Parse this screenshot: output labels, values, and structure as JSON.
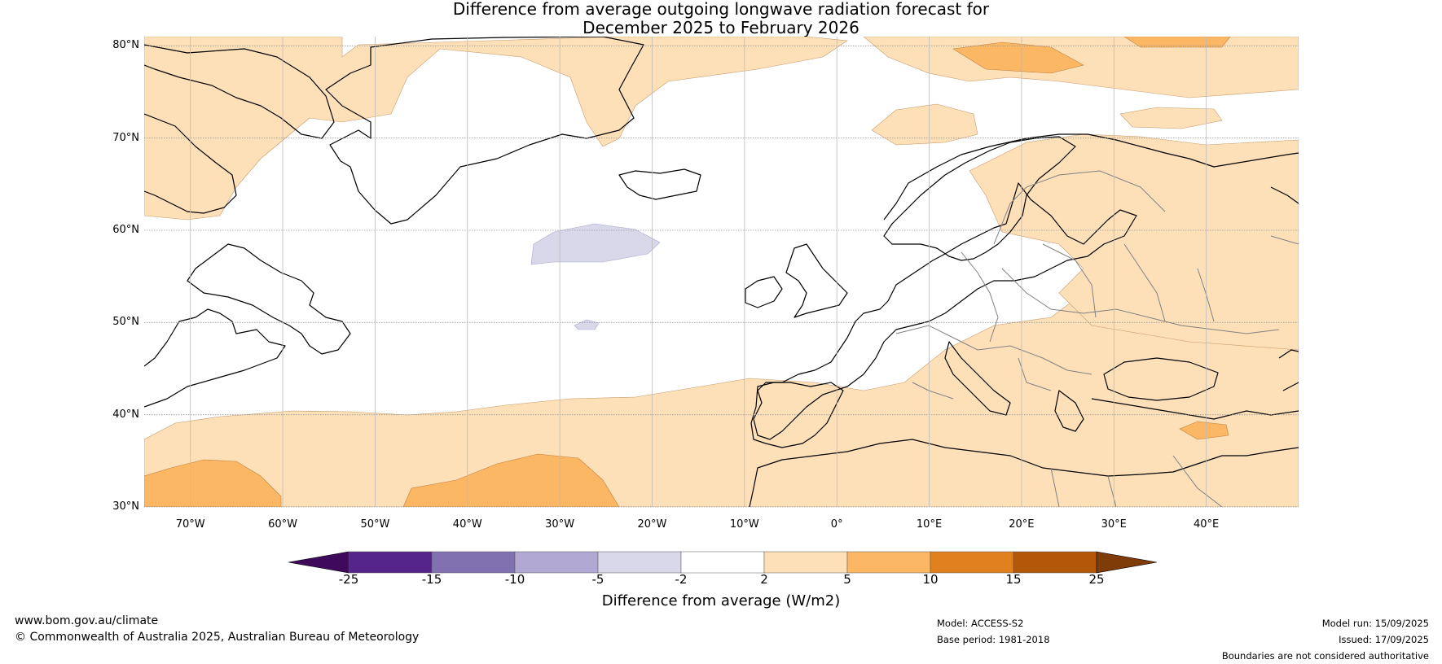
{
  "title": {
    "line1": "Difference from average outgoing longwave radiation forecast for",
    "line2": "December 2025 to February 2026"
  },
  "map": {
    "lat_labels": [
      "80°N",
      "70°N",
      "60°N",
      "50°N",
      "40°N",
      "30°N"
    ],
    "lat_values": [
      80,
      70,
      60,
      50,
      40,
      30
    ],
    "lon_labels": [
      "70°W",
      "60°W",
      "50°W",
      "40°W",
      "30°W",
      "20°W",
      "10°W",
      "0°",
      "10°E",
      "20°E",
      "30°E",
      "40°E"
    ],
    "lon_values": [
      -70,
      -60,
      -50,
      -40,
      -30,
      -20,
      -10,
      0,
      10,
      20,
      30,
      40
    ],
    "extent": {
      "lon_min": -75,
      "lon_max": 50,
      "lat_min": 30,
      "lat_max": 81
    }
  },
  "legend": {
    "ticks": [
      "-25",
      "-15",
      "-10",
      "-5",
      "-2",
      "2",
      "5",
      "10",
      "15",
      "25"
    ],
    "colors": [
      "#3f0a5c",
      "#562589",
      "#8072b0",
      "#b1a8d3",
      "#d8d8ea",
      "#ffffff",
      "#fde0b8",
      "#fbb764",
      "#e0801f",
      "#b35808",
      "#7f3b08"
    ],
    "label": "Difference from average (W/m2)"
  },
  "footer": {
    "website": "www.bom.gov.au/climate",
    "copyright": "© Commonwealth of Australia 2025, Australian Bureau of Meteorology",
    "model": "Model: ACCESS-S2",
    "base_period": "Base period: 1981-2018",
    "model_run": "Model run: 15/09/2025",
    "issued": "Issued: 17/09/2025",
    "disclaimer": "Boundaries are not considered authoritative"
  }
}
